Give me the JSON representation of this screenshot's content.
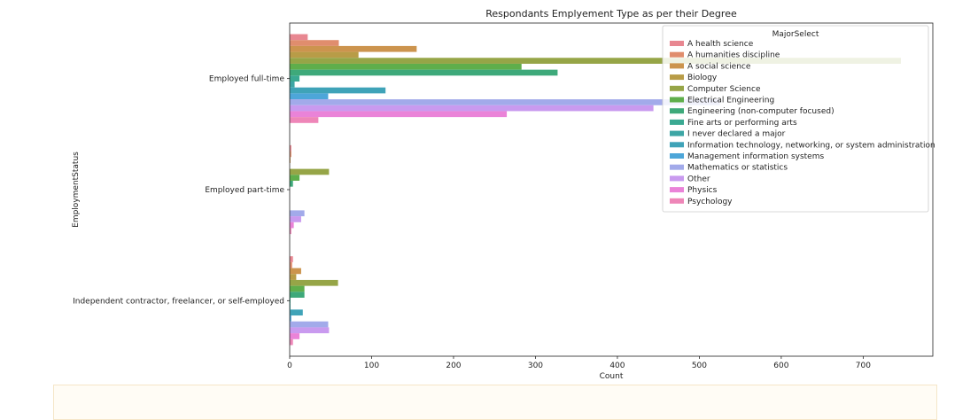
{
  "chart_data": {
    "type": "bar",
    "orientation": "horizontal",
    "title": "Respondants Emplyement Type as per their Degree",
    "xlabel": "Count",
    "ylabel": "EmploymentStatus",
    "xlim": [
      0,
      785
    ],
    "xticks": [
      0,
      100,
      200,
      300,
      400,
      500,
      600,
      700
    ],
    "grid": false,
    "legend_title": "MajorSelect",
    "legend_position": "upper-right",
    "categories": [
      "Employed full-time",
      "Employed part-time",
      "Independent contractor, freelancer, or self-employed"
    ],
    "series": [
      {
        "name": "A health science",
        "color": "#e88791",
        "values": [
          22,
          2,
          4
        ]
      },
      {
        "name": "A humanities discipline",
        "color": "#e08d6d",
        "values": [
          60,
          2,
          3
        ]
      },
      {
        "name": "A social science",
        "color": "#cc944e",
        "values": [
          155,
          1,
          14
        ]
      },
      {
        "name": "Biology",
        "color": "#b89c47",
        "values": [
          84,
          0,
          8
        ]
      },
      {
        "name": "Computer Science",
        "color": "#96a547",
        "values": [
          746,
          48,
          59
        ]
      },
      {
        "name": "Electrical Engineering",
        "color": "#5fae4b",
        "values": [
          283,
          12,
          18
        ]
      },
      {
        "name": "Engineering (non-computer focused)",
        "color": "#3ea97a",
        "values": [
          327,
          4,
          18
        ]
      },
      {
        "name": "Fine arts or performing arts",
        "color": "#3aa992",
        "values": [
          12,
          0,
          1
        ]
      },
      {
        "name": "I never declared a major",
        "color": "#3da6a5",
        "values": [
          6,
          0,
          1
        ]
      },
      {
        "name": "Information technology, networking, or system administration",
        "color": "#3fa3b8",
        "values": [
          117,
          0,
          16
        ]
      },
      {
        "name": "Management information systems",
        "color": "#4da6d9",
        "values": [
          47,
          0,
          2
        ]
      },
      {
        "name": "Mathematics or statistics",
        "color": "#a2aaea",
        "values": [
          525,
          18,
          47
        ]
      },
      {
        "name": "Other",
        "color": "#c99aef",
        "values": [
          444,
          14,
          48
        ]
      },
      {
        "name": "Physics",
        "color": "#ea83d8",
        "values": [
          265,
          5,
          12
        ]
      },
      {
        "name": "Psychology",
        "color": "#ee86b8",
        "values": [
          35,
          2,
          4
        ]
      }
    ]
  }
}
